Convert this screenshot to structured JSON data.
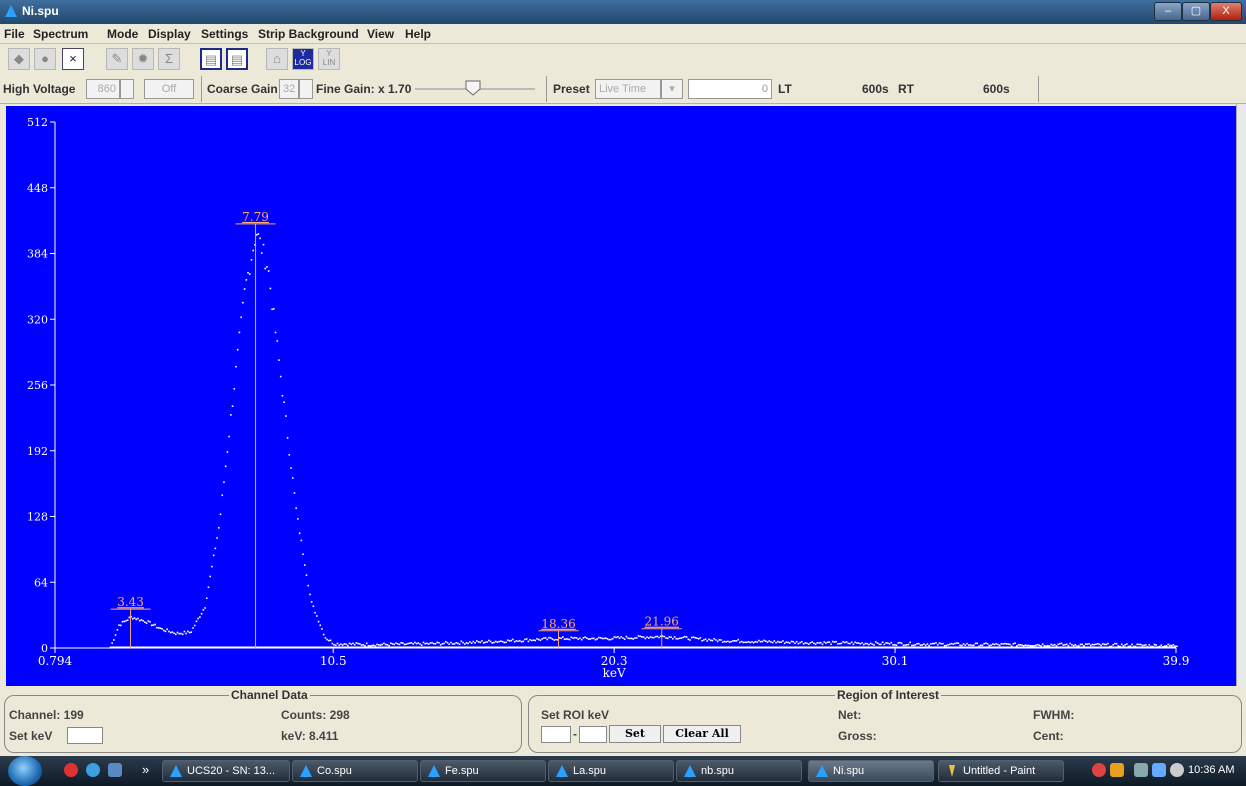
{
  "window": {
    "title": "Ni.spu",
    "min": "–",
    "max": "▢",
    "close": "X"
  },
  "menu": [
    "File",
    "Spectrum",
    "Mode",
    "Display",
    "Settings",
    "Strip Background",
    "View",
    "Help"
  ],
  "toolbar": {
    "x_label": "×",
    "sigma": "Σ",
    "log_label": "LOG",
    "y_label": "Y",
    "lin_label": "LIN"
  },
  "controls": {
    "high_voltage_label": "High Voltage",
    "high_voltage_value": "860",
    "off_label": "Off",
    "coarse_gain_label": "Coarse Gain",
    "coarse_gain_value": "32",
    "fine_gain_label": "Fine Gain: x 1.70",
    "fine_gain_level": 0.48,
    "preset_label": "Preset",
    "preset_value": "Live Time",
    "preset_count": "0",
    "lt_label": "LT",
    "lt_value": "600s",
    "rt_label": "RT",
    "rt_value": "600s"
  },
  "chart_data": {
    "type": "scatter",
    "xlabel": "keV",
    "x_ticks": [
      "0.794",
      "10.5",
      "20.3",
      "30.1",
      "39.9"
    ],
    "xlim": [
      0.794,
      39.9
    ],
    "y_ticks": [
      "0",
      "64",
      "128",
      "192",
      "256",
      "320",
      "384",
      "448",
      "512"
    ],
    "ylim": [
      0,
      512
    ],
    "background": "#0000ff",
    "point_color": "#ffffff",
    "label_color": "#ffaa66",
    "peaks": [
      {
        "label": "3.43",
        "x": 3.43,
        "y": 30
      },
      {
        "label": "7.79",
        "x": 7.79,
        "y": 405
      },
      {
        "label": "18.36",
        "x": 18.36,
        "y": 9
      },
      {
        "label": "21.96",
        "x": 21.96,
        "y": 11
      }
    ],
    "profile": [
      [
        2.7,
        0
      ],
      [
        3.0,
        22
      ],
      [
        3.43,
        30
      ],
      [
        4.0,
        25
      ],
      [
        4.5,
        18
      ],
      [
        5.0,
        14
      ],
      [
        5.5,
        15
      ],
      [
        6.0,
        40
      ],
      [
        6.5,
        120
      ],
      [
        7.0,
        250
      ],
      [
        7.4,
        350
      ],
      [
        7.79,
        405
      ],
      [
        8.2,
        370
      ],
      [
        8.7,
        250
      ],
      [
        9.2,
        130
      ],
      [
        9.7,
        45
      ],
      [
        10.2,
        10
      ],
      [
        10.5,
        4
      ],
      [
        12,
        3
      ],
      [
        14,
        4
      ],
      [
        16,
        6
      ],
      [
        18.36,
        9
      ],
      [
        20,
        9
      ],
      [
        21.96,
        11
      ],
      [
        24,
        7
      ],
      [
        27,
        5
      ],
      [
        30,
        4
      ],
      [
        33,
        3
      ],
      [
        36,
        3
      ],
      [
        39.9,
        2
      ]
    ]
  },
  "bottom": {
    "channel_data_title": "Channel Data",
    "channel": "Channel: 199",
    "counts": "Counts: 298",
    "set_kev": "Set keV",
    "kev": "keV: 8.411",
    "roi_title": "Region of Interest",
    "set_roi": "Set ROI keV",
    "dash": "-",
    "set_btn": "Set",
    "clear_btn": "Clear All",
    "net": "Net:",
    "gross": "Gross:",
    "fwhm": "FWHM:",
    "cent": "Cent:"
  },
  "taskbar": {
    "more": "»",
    "tasks": [
      "UCS20 - SN: 13...",
      "Co.spu",
      "Fe.spu",
      "La.spu",
      "nb.spu",
      "Ni.spu",
      "Untitled - Paint"
    ],
    "time": "10:36 AM"
  }
}
